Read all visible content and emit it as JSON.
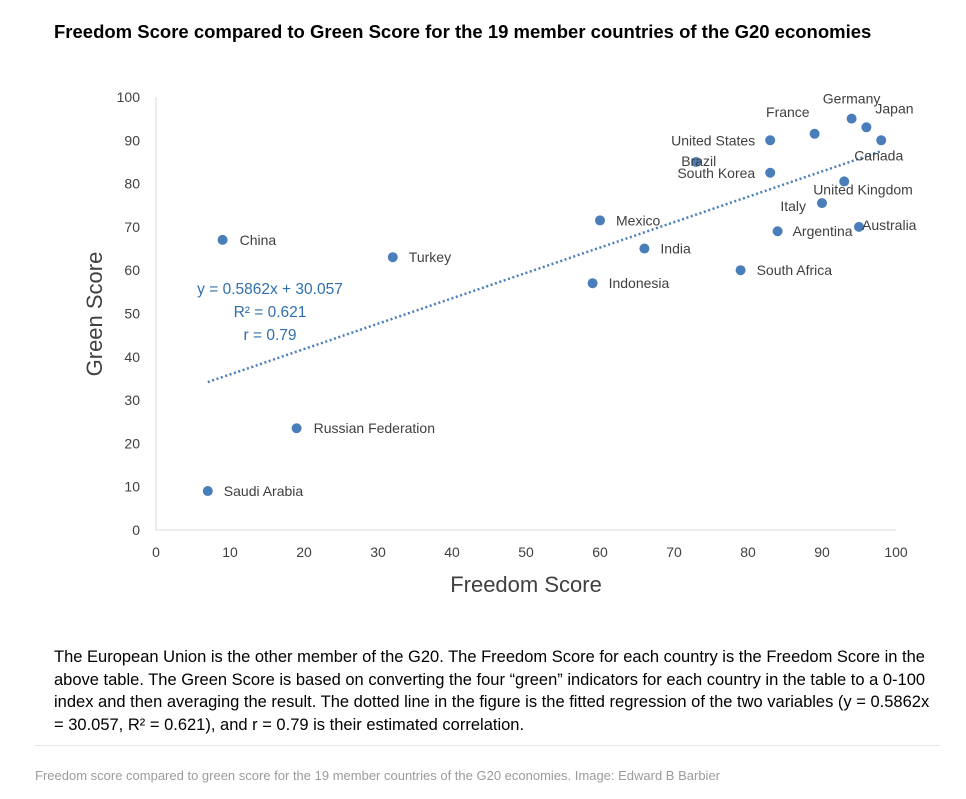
{
  "title": "Freedom Score compared to Green Score for the 19 member countries of the G20 economies",
  "note": "The European Union is the other member of the G20. The Freedom Score for each country is the Freedom Score in the above table. The Green Score is based on converting the four “green” indicators for each country in the table to a 0-100 index and then averaging the result. The dotted line in the figure is the fitted regression of the two variables (y = 0.5862x = 30.057, R² = 0.621), and r = 0.79 is their estimated correlation.",
  "caption": "Freedom score compared to green score for the 19 member countries of the G20 economies. Image: Edward B Barbier",
  "colors": {
    "marker": "#4a7ebb",
    "trendline": "#4a7ebb",
    "annotation": "#2f6fad",
    "axis": "#d9d9d9",
    "text": "#404040"
  },
  "chart_data": {
    "type": "scatter",
    "title": "Freedom Score compared to Green Score for the 19 member countries of the G20 economies",
    "xlabel": "Freedom Score",
    "ylabel": "Green Score",
    "xlim": [
      0,
      100
    ],
    "ylim": [
      0,
      100
    ],
    "xticks": [
      0,
      10,
      20,
      30,
      40,
      50,
      60,
      70,
      80,
      90,
      100
    ],
    "yticks": [
      0,
      10,
      20,
      30,
      40,
      50,
      60,
      70,
      80,
      90,
      100
    ],
    "grid": false,
    "points": [
      {
        "label": "China",
        "x": 9,
        "y": 67
      },
      {
        "label": "Turkey",
        "x": 32,
        "y": 63
      },
      {
        "label": "Russian Federation",
        "x": 19,
        "y": 23.5
      },
      {
        "label": "Saudi Arabia",
        "x": 7,
        "y": 9
      },
      {
        "label": "Mexico",
        "x": 60,
        "y": 71.5
      },
      {
        "label": "India",
        "x": 66,
        "y": 65
      },
      {
        "label": "Indonesia",
        "x": 59,
        "y": 57
      },
      {
        "label": "Brazil",
        "x": 73,
        "y": 85
      },
      {
        "label": "United States",
        "x": 83,
        "y": 90
      },
      {
        "label": "South Korea",
        "x": 83,
        "y": 82.5
      },
      {
        "label": "France",
        "x": 89,
        "y": 91.5
      },
      {
        "label": "Germany",
        "x": 94,
        "y": 95
      },
      {
        "label": "Japan",
        "x": 96,
        "y": 93
      },
      {
        "label": "Canada",
        "x": 98,
        "y": 90
      },
      {
        "label": "United Kingdom",
        "x": 93,
        "y": 80.5
      },
      {
        "label": "Italy",
        "x": 90,
        "y": 75.5
      },
      {
        "label": "Argentina",
        "x": 84,
        "y": 69
      },
      {
        "label": "Australia",
        "x": 95,
        "y": 70
      },
      {
        "label": "South Africa",
        "x": 79,
        "y": 60
      }
    ],
    "trendline": {
      "type": "linear",
      "slope": 0.5862,
      "intercept": 30.057,
      "x_range": [
        7,
        98
      ],
      "style": "dotted"
    },
    "annotations": [
      "y = 0.5862x + 30.057",
      "R² = 0.621",
      "r = 0.79"
    ]
  }
}
